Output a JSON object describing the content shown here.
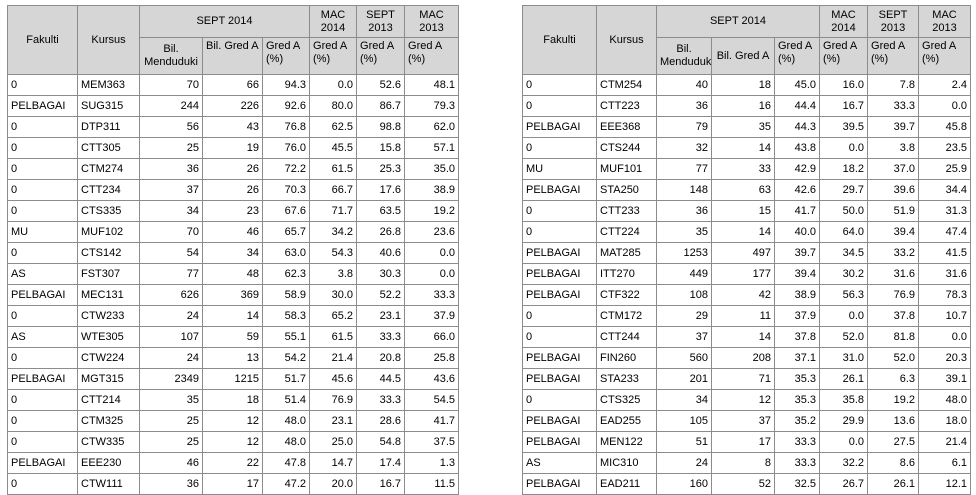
{
  "headers": {
    "fakulti": "Fakulti",
    "kursus": "Kursus",
    "sept2014": "SEPT 2014",
    "mac2014": "MAC 2014",
    "sept2013": "SEPT 2013",
    "mac2013": "MAC 2013",
    "bil_menduduki": "Bil. Menduduki",
    "bil_gred_a_left": "Bil. Gred A",
    "bil_gred_a_right": "Bil. Gred A",
    "gred_a_pct": "Gred A (%)"
  },
  "left_rows": [
    [
      "0",
      "MEM363",
      "70",
      "66",
      "94.3",
      "0.0",
      "52.6",
      "48.1"
    ],
    [
      "PELBAGAI",
      "SUG315",
      "244",
      "226",
      "92.6",
      "80.0",
      "86.7",
      "79.3"
    ],
    [
      "0",
      "DTP311",
      "56",
      "43",
      "76.8",
      "62.5",
      "98.8",
      "62.0"
    ],
    [
      "0",
      "CTT305",
      "25",
      "19",
      "76.0",
      "45.5",
      "15.8",
      "57.1"
    ],
    [
      "0",
      "CTM274",
      "36",
      "26",
      "72.2",
      "61.5",
      "25.3",
      "35.0"
    ],
    [
      "0",
      "CTT234",
      "37",
      "26",
      "70.3",
      "66.7",
      "17.6",
      "38.9"
    ],
    [
      "0",
      "CTS335",
      "34",
      "23",
      "67.6",
      "71.7",
      "63.5",
      "19.2"
    ],
    [
      "MU",
      "MUF102",
      "70",
      "46",
      "65.7",
      "34.2",
      "26.8",
      "23.6"
    ],
    [
      "0",
      "CTS142",
      "54",
      "34",
      "63.0",
      "54.3",
      "40.6",
      "0.0"
    ],
    [
      "AS",
      "FST307",
      "77",
      "48",
      "62.3",
      "3.8",
      "30.3",
      "0.0"
    ],
    [
      "PELBAGAI",
      "MEC131",
      "626",
      "369",
      "58.9",
      "30.0",
      "52.2",
      "33.3"
    ],
    [
      "0",
      "CTW233",
      "24",
      "14",
      "58.3",
      "65.2",
      "23.1",
      "37.9"
    ],
    [
      "AS",
      "WTE305",
      "107",
      "59",
      "55.1",
      "61.5",
      "33.3",
      "66.0"
    ],
    [
      "0",
      "CTW224",
      "24",
      "13",
      "54.2",
      "21.4",
      "20.8",
      "25.8"
    ],
    [
      "PELBAGAI",
      "MGT315",
      "2349",
      "1215",
      "51.7",
      "45.6",
      "44.5",
      "43.6"
    ],
    [
      "0",
      "CTT214",
      "35",
      "18",
      "51.4",
      "76.9",
      "33.3",
      "54.5"
    ],
    [
      "0",
      "CTM325",
      "25",
      "12",
      "48.0",
      "23.1",
      "28.6",
      "41.7"
    ],
    [
      "0",
      "CTW335",
      "25",
      "12",
      "48.0",
      "25.0",
      "54.8",
      "37.5"
    ],
    [
      "PELBAGAI",
      "EEE230",
      "46",
      "22",
      "47.8",
      "14.7",
      "17.4",
      "1.3"
    ],
    [
      "0",
      "CTW111",
      "36",
      "17",
      "47.2",
      "20.0",
      "16.7",
      "11.5"
    ]
  ],
  "right_rows": [
    [
      "0",
      "CTM254",
      "40",
      "18",
      "45.0",
      "16.0",
      "7.8",
      "2.4"
    ],
    [
      "0",
      "CTT223",
      "36",
      "16",
      "44.4",
      "16.7",
      "33.3",
      "0.0"
    ],
    [
      "PELBAGAI",
      "EEE368",
      "79",
      "35",
      "44.3",
      "39.5",
      "39.7",
      "45.8"
    ],
    [
      "0",
      "CTS244",
      "32",
      "14",
      "43.8",
      "0.0",
      "3.8",
      "23.5"
    ],
    [
      "MU",
      "MUF101",
      "77",
      "33",
      "42.9",
      "18.2",
      "37.0",
      "25.9"
    ],
    [
      "PELBAGAI",
      "STA250",
      "148",
      "63",
      "42.6",
      "29.7",
      "39.6",
      "34.4"
    ],
    [
      "0",
      "CTT233",
      "36",
      "15",
      "41.7",
      "50.0",
      "51.9",
      "31.3"
    ],
    [
      "0",
      "CTT224",
      "35",
      "14",
      "40.0",
      "64.0",
      "39.4",
      "47.4"
    ],
    [
      "PELBAGAI",
      "MAT285",
      "1253",
      "497",
      "39.7",
      "34.5",
      "33.2",
      "41.5"
    ],
    [
      "PELBAGAI",
      "ITT270",
      "449",
      "177",
      "39.4",
      "30.2",
      "31.6",
      "31.6"
    ],
    [
      "PELBAGAI",
      "CTF322",
      "108",
      "42",
      "38.9",
      "56.3",
      "76.9",
      "78.3"
    ],
    [
      "0",
      "CTM172",
      "29",
      "11",
      "37.9",
      "0.0",
      "37.8",
      "10.7"
    ],
    [
      "0",
      "CTT244",
      "37",
      "14",
      "37.8",
      "52.0",
      "81.8",
      "0.0"
    ],
    [
      "PELBAGAI",
      "FIN260",
      "560",
      "208",
      "37.1",
      "31.0",
      "52.0",
      "20.3"
    ],
    [
      "PELBAGAI",
      "STA233",
      "201",
      "71",
      "35.3",
      "26.1",
      "6.3",
      "39.1"
    ],
    [
      "0",
      "CTS325",
      "34",
      "12",
      "35.3",
      "35.8",
      "19.2",
      "48.0"
    ],
    [
      "PELBAGAI",
      "EAD255",
      "105",
      "37",
      "35.2",
      "29.9",
      "13.6",
      "18.0"
    ],
    [
      "PELBAGAI",
      "MEN122",
      "51",
      "17",
      "33.3",
      "0.0",
      "27.5",
      "21.4"
    ],
    [
      "AS",
      "MIC310",
      "24",
      "8",
      "33.3",
      "32.2",
      "8.6",
      "6.1"
    ],
    [
      "PELBAGAI",
      "EAD211",
      "160",
      "52",
      "32.5",
      "26.7",
      "26.1",
      "12.1"
    ]
  ]
}
